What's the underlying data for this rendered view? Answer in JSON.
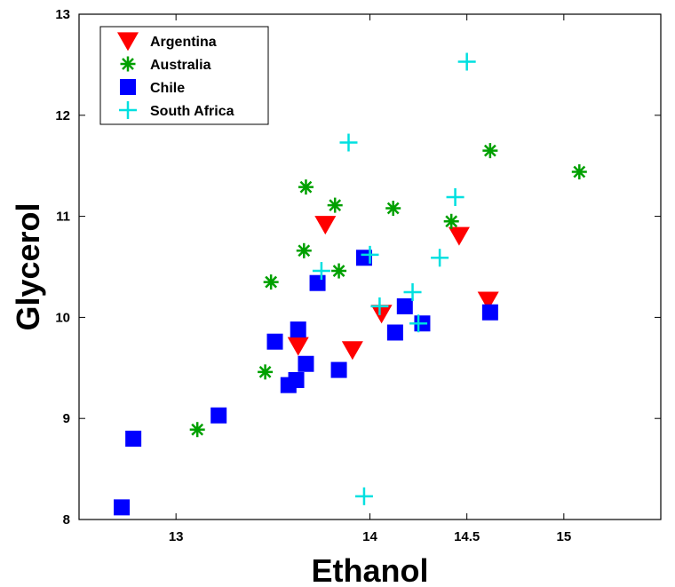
{
  "chart_data": {
    "type": "scatter",
    "title": "",
    "xlabel": "Ethanol",
    "ylabel": "Glycerol",
    "xlim": [
      12.5,
      15.5
    ],
    "ylim": [
      8,
      13
    ],
    "x_ticks": [
      13,
      14,
      14.5,
      15
    ],
    "x_tick_labels": [
      "13",
      "14",
      "14.5",
      "15"
    ],
    "y_ticks": [
      8,
      9,
      10,
      11,
      12,
      13
    ],
    "y_tick_labels": [
      "8",
      "9",
      "10",
      "11",
      "12",
      "13"
    ],
    "grid": false,
    "legend_position": "top-left",
    "series": [
      {
        "name": "Argentina",
        "marker": "triangle-down",
        "color": "#ff0000",
        "points": [
          [
            13.77,
            10.92
          ],
          [
            13.63,
            9.72
          ],
          [
            13.91,
            9.68
          ],
          [
            14.06,
            10.04
          ],
          [
            14.46,
            10.81
          ],
          [
            14.61,
            10.17
          ]
        ]
      },
      {
        "name": "Australia",
        "marker": "asterisk",
        "color": "#00a000",
        "points": [
          [
            13.11,
            8.89
          ],
          [
            13.46,
            9.46
          ],
          [
            13.49,
            10.35
          ],
          [
            13.66,
            10.66
          ],
          [
            13.67,
            11.29
          ],
          [
            13.82,
            11.11
          ],
          [
            13.84,
            10.46
          ],
          [
            14.12,
            11.08
          ],
          [
            14.42,
            10.95
          ],
          [
            14.62,
            11.65
          ],
          [
            15.08,
            11.44
          ]
        ]
      },
      {
        "name": "Chile",
        "marker": "square",
        "color": "#0000ff",
        "points": [
          [
            12.72,
            8.12
          ],
          [
            12.78,
            8.8
          ],
          [
            13.22,
            9.03
          ],
          [
            13.51,
            9.76
          ],
          [
            13.58,
            9.33
          ],
          [
            13.62,
            9.38
          ],
          [
            13.63,
            9.88
          ],
          [
            13.67,
            9.54
          ],
          [
            13.73,
            10.34
          ],
          [
            13.84,
            9.48
          ],
          [
            13.97,
            10.59
          ],
          [
            14.13,
            9.85
          ],
          [
            14.18,
            10.11
          ],
          [
            14.27,
            9.94
          ],
          [
            14.62,
            10.05
          ]
        ]
      },
      {
        "name": "South Africa",
        "marker": "plus",
        "color": "#00e0e0",
        "points": [
          [
            13.89,
            11.73
          ],
          [
            13.75,
            10.46
          ],
          [
            13.97,
            8.23
          ],
          [
            14.0,
            10.62
          ],
          [
            14.05,
            10.11
          ],
          [
            14.22,
            10.25
          ],
          [
            14.25,
            9.94
          ],
          [
            14.36,
            10.59
          ],
          [
            14.44,
            11.19
          ],
          [
            14.5,
            12.53
          ]
        ]
      }
    ]
  }
}
